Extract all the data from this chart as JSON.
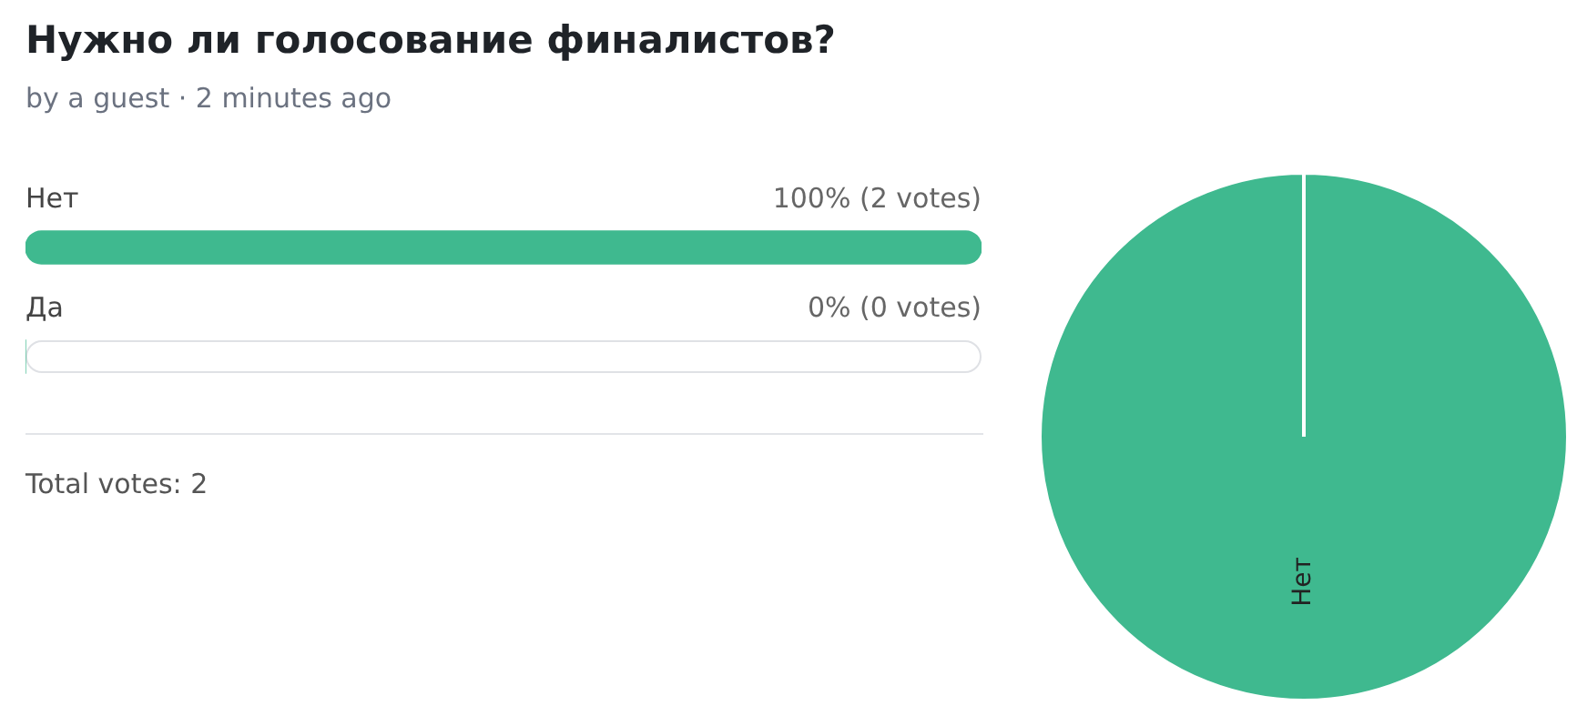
{
  "chart_data": [
    {
      "type": "bar",
      "orientation": "horizontal",
      "title": "Нужно ли голосование финалистов?",
      "subtitle": "by a guest · 2 minutes ago",
      "categories": [
        "Нет",
        "Да"
      ],
      "values": [
        100,
        0
      ],
      "color": "#3fb98f",
      "xlim": [
        0,
        100
      ],
      "legend": false,
      "value_labels": [
        "100% (2 votes)",
        "0% (0 votes)"
      ],
      "annotations": [
        "Total votes: 2"
      ]
    },
    {
      "type": "pie",
      "categories": [
        "Нет"
      ],
      "values": [
        100
      ],
      "colors": [
        "#3fb98f"
      ],
      "legend": false
    }
  ]
}
